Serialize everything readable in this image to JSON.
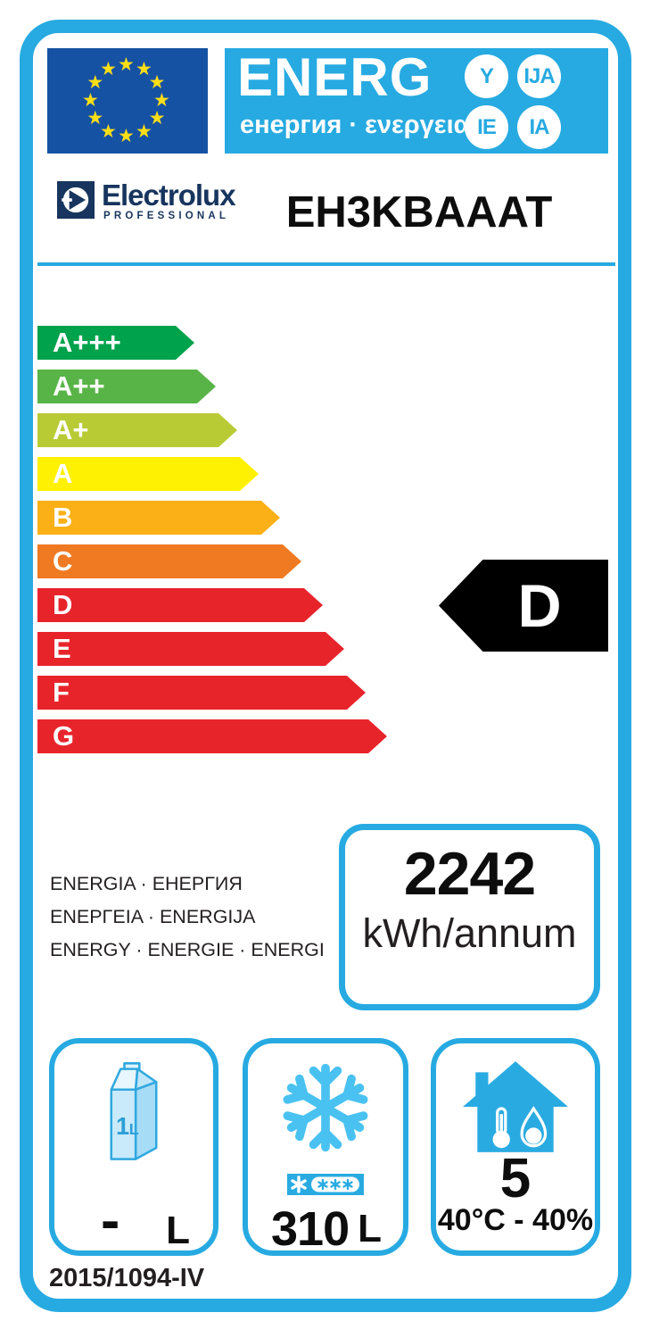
{
  "colors": {
    "accent_cyan": "#27AAE1",
    "icon_blue": "#29ABE2",
    "snowflake_blue": "#4AC2F1",
    "eu_flag_blue": "#1652A4",
    "eu_star_yellow": "#FFDE17",
    "brand_navy": "#17355E",
    "rating_red": "#E8242B",
    "indicator_black": "#000000"
  },
  "header": {
    "title": "ENERG",
    "subtitle": "енергия · ενεργεια",
    "star": "★",
    "circles": [
      "Y",
      "IJA",
      "IE",
      "IA"
    ]
  },
  "brand": {
    "name": "Electrolux",
    "tagline": "PROFESSIONAL",
    "model": "EH3KBAAAT"
  },
  "rating_scale": [
    {
      "label": "A+++",
      "color": "#00A24B"
    },
    {
      "label": "A++",
      "color": "#58B447"
    },
    {
      "label": "A+",
      "color": "#B8CB35"
    },
    {
      "label": "A",
      "color": "#FFF101"
    },
    {
      "label": "B",
      "color": "#FBB017"
    },
    {
      "label": "C",
      "color": "#EF7A22"
    },
    {
      "label": "D",
      "color": "#E8242B"
    },
    {
      "label": "E",
      "color": "#E8242B"
    },
    {
      "label": "F",
      "color": "#E8242B"
    },
    {
      "label": "G",
      "color": "#E8242B"
    }
  ],
  "rating": {
    "class": "D"
  },
  "energy_words": [
    "ENERGIA · ЕНЕРГИЯ",
    "ENEPΓEIA · ENERGIJA",
    "ENERGY · ENERGIE · ENERGI"
  ],
  "consumption": {
    "value": "2242",
    "unit": "kWh/annum"
  },
  "net_volume_box": {
    "value": "-",
    "unit": "L",
    "carton_label": "1L"
  },
  "freezer_box": {
    "value": "310",
    "unit": "L"
  },
  "climate_box": {
    "value": "5",
    "condition": "40°C - 40%"
  },
  "footer": {
    "regulation": "2015/1094-IV"
  }
}
